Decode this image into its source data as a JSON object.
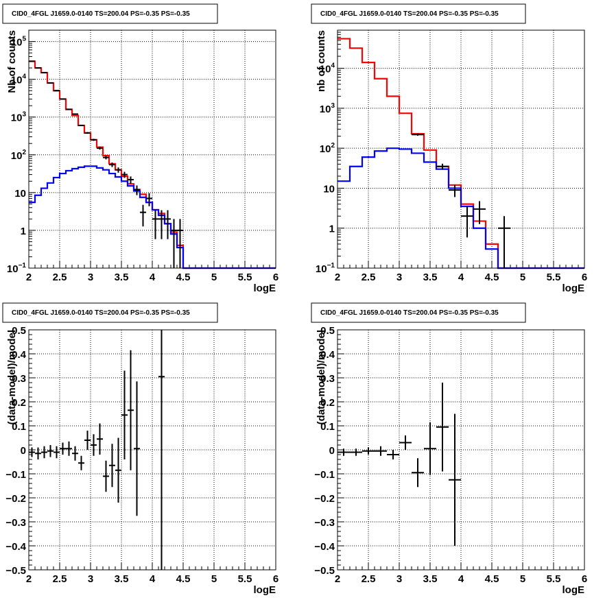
{
  "chart_data": [
    {
      "type": "line",
      "title": "CID0_4FGL J1659.0-0140 TS=200.04 PS=-0.35 PS=-0.35",
      "xlabel": "logE",
      "ylabel": "Nb of counts",
      "xlim": [
        2,
        6
      ],
      "ylim": [
        0.1,
        200000
      ],
      "yscale": "log",
      "grid": true,
      "x_ticks": [
        "2",
        "2.5",
        "3",
        "3.5",
        "4",
        "4.5",
        "5",
        "5.5",
        "6"
      ],
      "y_ticks": [
        {
          "value": 0.1,
          "base": "10",
          "exp": "−1"
        },
        {
          "value": 1,
          "label": "1"
        },
        {
          "value": 10,
          "label": "10"
        },
        {
          "value": 100,
          "base": "10",
          "exp": "2"
        },
        {
          "value": 1000,
          "base": "10",
          "exp": "3"
        },
        {
          "value": 10000,
          "base": "10",
          "exp": "4"
        },
        {
          "value": 100000,
          "base": "10",
          "exp": "5"
        }
      ],
      "bin_edges": [
        2.0,
        2.1,
        2.2,
        2.3,
        2.4,
        2.5,
        2.6,
        2.7,
        2.8,
        2.9,
        3.0,
        3.1,
        3.2,
        3.3,
        3.4,
        3.5,
        3.6,
        3.7,
        3.8,
        3.9,
        4.0,
        4.1,
        4.2,
        4.3,
        4.4,
        4.5,
        4.6,
        4.7,
        4.8,
        4.9,
        5.0,
        5.1,
        5.2,
        5.3,
        5.4,
        5.5,
        5.6,
        5.7,
        5.8,
        5.9,
        6.0
      ],
      "series": [
        {
          "color": "#ff0000",
          "values": [
            30000,
            20000,
            15000,
            8000,
            5000,
            3000,
            1600,
            1100,
            600,
            380,
            250,
            160,
            95,
            58,
            40,
            27,
            17,
            12,
            9,
            5.5,
            3.5,
            2.8,
            1.5,
            0.9,
            0.4,
            0.1,
            0.1,
            0.1,
            0.1,
            0.1,
            0.1,
            0.1,
            0.1,
            0.1,
            0.1,
            0.1,
            0.1,
            0.1,
            0.1,
            0.1
          ]
        },
        {
          "color": "#0000ff",
          "values": [
            5.5,
            8.5,
            13,
            18,
            25,
            32,
            38,
            43,
            47,
            50,
            50,
            45,
            40,
            32,
            26,
            20,
            15,
            11,
            7.5,
            5.5,
            3.5,
            2.5,
            1.5,
            0.8,
            0.35,
            0.1,
            0.1,
            0.1,
            0.1,
            0.1,
            0.1,
            0.1,
            0.1,
            0.1,
            0.1,
            0.1,
            0.1,
            0.1,
            0.1,
            0.1
          ]
        }
      ],
      "points": [
        {
          "x": 2.05,
          "y": 30000
        },
        {
          "x": 2.15,
          "y": 20000
        },
        {
          "x": 2.25,
          "y": 15000
        },
        {
          "x": 2.35,
          "y": 8000
        },
        {
          "x": 2.45,
          "y": 5000
        },
        {
          "x": 2.55,
          "y": 3000
        },
        {
          "x": 2.65,
          "y": 1600
        },
        {
          "x": 2.75,
          "y": 1200
        },
        {
          "x": 2.85,
          "y": 600
        },
        {
          "x": 2.95,
          "y": 380
        },
        {
          "x": 3.05,
          "y": 250
        },
        {
          "x": 3.15,
          "y": 150
        },
        {
          "x": 3.25,
          "y": 85
        },
        {
          "x": 3.35,
          "y": 55
        },
        {
          "x": 3.45,
          "y": 40
        },
        {
          "x": 3.55,
          "y": 30
        },
        {
          "x": 3.65,
          "y": 22
        },
        {
          "x": 3.75,
          "y": 12
        },
        {
          "x": 3.85,
          "y": 3
        },
        {
          "x": 3.95,
          "y": 7
        },
        {
          "x": 4.05,
          "y": 2
        },
        {
          "x": 4.15,
          "y": 2
        },
        {
          "x": 4.25,
          "y": 2
        },
        {
          "x": 4.35,
          "y": 1
        },
        {
          "x": 4.45,
          "y": 1
        }
      ],
      "error_bar_halfwidth_x": 0.05
    },
    {
      "type": "line",
      "title": "CID0_4FGL J1659.0-0140 TS=200.04 PS=-0.35 PS=-0.35",
      "xlabel": "logE",
      "ylabel": "nb of counts",
      "xlim": [
        2,
        6
      ],
      "ylim": [
        0.1,
        90000
      ],
      "yscale": "log",
      "grid": true,
      "x_ticks": [
        "2",
        "2.5",
        "3",
        "3.5",
        "4",
        "4.5",
        "5",
        "5.5",
        "6"
      ],
      "y_ticks": [
        {
          "value": 0.1,
          "base": "10",
          "exp": "−1"
        },
        {
          "value": 1,
          "label": "1"
        },
        {
          "value": 10,
          "label": "10"
        },
        {
          "value": 100,
          "base": "10",
          "exp": "2"
        },
        {
          "value": 1000,
          "base": "10",
          "exp": "3"
        },
        {
          "value": 10000,
          "base": "10",
          "exp": "4"
        }
      ],
      "bin_edges": [
        2.0,
        2.2,
        2.4,
        2.6,
        2.8,
        3.0,
        3.2,
        3.4,
        3.6,
        3.8,
        4.0,
        4.2,
        4.4,
        4.6,
        4.8,
        5.0,
        5.2,
        5.4,
        5.6,
        5.8,
        6.0
      ],
      "series": [
        {
          "color": "#ff0000",
          "values": [
            55000,
            32000,
            14000,
            5500,
            2000,
            750,
            230,
            90,
            35,
            12,
            4,
            1.5,
            0.4,
            0.1,
            0.1,
            0.1,
            0.1,
            0.1,
            0.1,
            0.1
          ]
        },
        {
          "color": "#0000ff",
          "values": [
            15,
            35,
            60,
            85,
            100,
            95,
            75,
            45,
            30,
            10,
            3.5,
            1,
            0.3,
            0.1,
            0.1,
            0.1,
            0.1,
            0.1,
            0.1,
            0.1
          ]
        }
      ],
      "points": [
        {
          "x": 3.3,
          "y": 220
        },
        {
          "x": 3.7,
          "y": 35
        },
        {
          "x": 3.9,
          "y": 9
        },
        {
          "x": 4.1,
          "y": 2
        },
        {
          "x": 4.3,
          "y": 3
        },
        {
          "x": 4.7,
          "y": 1
        }
      ],
      "error_bar_halfwidth_x": 0.1
    },
    {
      "type": "scatter",
      "title": "CID0_4FGL J1659.0-0140 TS=200.04 PS=-0.35 PS=-0.35",
      "xlabel": "logE",
      "ylabel": "(data-model)/model",
      "xlim": [
        2,
        6
      ],
      "ylim": [
        -0.5,
        0.5
      ],
      "yscale": "linear",
      "grid": true,
      "x_ticks": [
        "2",
        "2.5",
        "3",
        "3.5",
        "4",
        "4.5",
        "5",
        "5.5",
        "6"
      ],
      "y_ticks": [
        "−0.5",
        "−0.4",
        "−0.3",
        "−0.2",
        "−0.1",
        "0",
        "0.1",
        "0.2",
        "0.3",
        "0.4",
        "0.5"
      ],
      "points": [
        {
          "x": 2.05,
          "y": -0.01,
          "err": 0.02
        },
        {
          "x": 2.15,
          "y": -0.015,
          "err": 0.025
        },
        {
          "x": 2.25,
          "y": -0.01,
          "err": 0.025
        },
        {
          "x": 2.35,
          "y": -0.005,
          "err": 0.025
        },
        {
          "x": 2.45,
          "y": -0.01,
          "err": 0.025
        },
        {
          "x": 2.55,
          "y": 0.005,
          "err": 0.025
        },
        {
          "x": 2.65,
          "y": 0.005,
          "err": 0.03
        },
        {
          "x": 2.75,
          "y": -0.015,
          "err": 0.03
        },
        {
          "x": 2.85,
          "y": -0.055,
          "err": 0.03
        },
        {
          "x": 2.95,
          "y": 0.04,
          "err": 0.04
        },
        {
          "x": 3.05,
          "y": 0.02,
          "err": 0.045
        },
        {
          "x": 3.15,
          "y": 0.045,
          "err": 0.065
        },
        {
          "x": 3.25,
          "y": -0.11,
          "err": 0.065
        },
        {
          "x": 3.35,
          "y": -0.065,
          "err": 0.09
        },
        {
          "x": 3.45,
          "y": -0.085,
          "err": 0.135
        },
        {
          "x": 3.55,
          "y": 0.145,
          "err": 0.185
        },
        {
          "x": 3.65,
          "y": 0.165,
          "err": 0.25
        },
        {
          "x": 3.75,
          "y": 0.005,
          "err": 0.28
        },
        {
          "x": 4.15,
          "y": 0.305,
          "err": 0.86
        }
      ],
      "error_bar_halfwidth_x": 0.05
    },
    {
      "type": "scatter",
      "title": "CID0_4FGL J1659.0-0140 TS=200.04 PS=-0.35 PS=-0.35",
      "xlabel": "logE",
      "ylabel": "(data-model)/model",
      "xlim": [
        2,
        6
      ],
      "ylim": [
        -0.5,
        0.5
      ],
      "yscale": "linear",
      "grid": true,
      "x_ticks": [
        "2",
        "2.5",
        "3",
        "3.5",
        "4",
        "4.5",
        "5",
        "5.5",
        "6"
      ],
      "y_ticks": [
        "−0.5",
        "−0.4",
        "−0.3",
        "−0.2",
        "−0.1",
        "0",
        "0.1",
        "0.2",
        "0.3",
        "0.4",
        "0.5"
      ],
      "points": [
        {
          "x": 2.1,
          "y": -0.01,
          "err": 0.015
        },
        {
          "x": 2.3,
          "y": -0.01,
          "err": 0.015
        },
        {
          "x": 2.5,
          "y": -0.005,
          "err": 0.015
        },
        {
          "x": 2.7,
          "y": -0.005,
          "err": 0.02
        },
        {
          "x": 2.9,
          "y": -0.02,
          "err": 0.02
        },
        {
          "x": 3.1,
          "y": 0.03,
          "err": 0.03
        },
        {
          "x": 3.3,
          "y": -0.095,
          "err": 0.06
        },
        {
          "x": 3.5,
          "y": 0.005,
          "err": 0.11
        },
        {
          "x": 3.7,
          "y": 0.095,
          "err": 0.185
        },
        {
          "x": 3.9,
          "y": -0.125,
          "err": 0.275
        }
      ],
      "error_bar_halfwidth_x": 0.1
    }
  ]
}
